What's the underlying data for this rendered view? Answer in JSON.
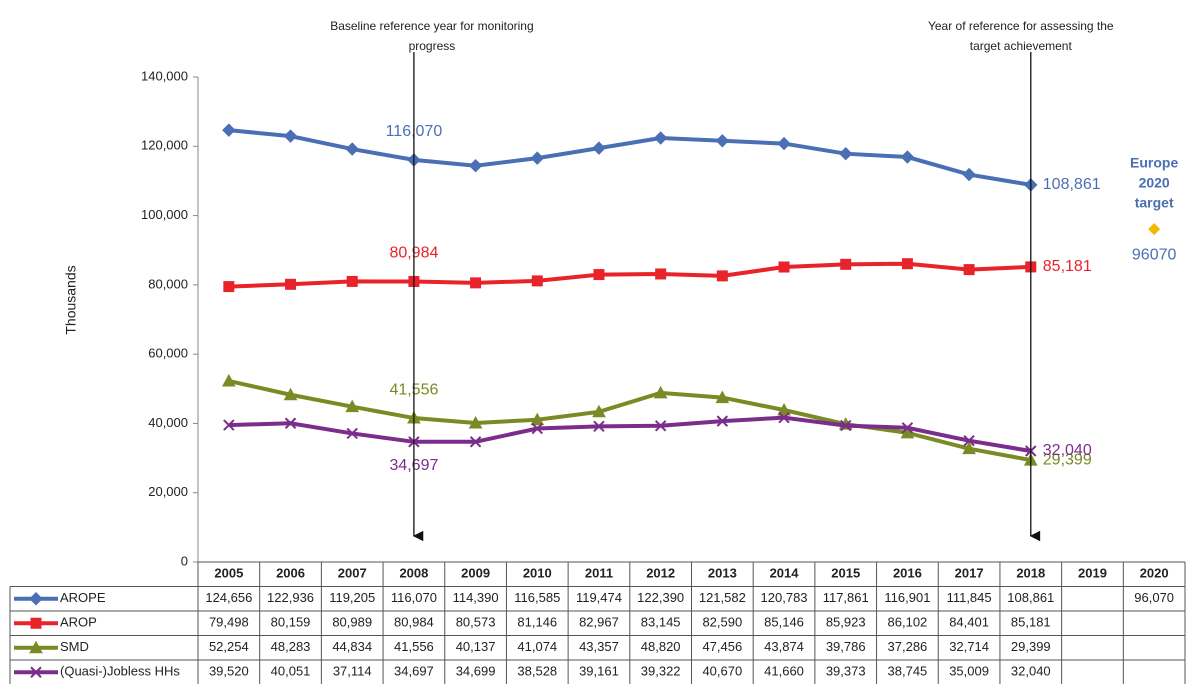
{
  "chart_data": {
    "type": "line",
    "y_label": "Thousands",
    "categories": [
      "2005",
      "2006",
      "2007",
      "2008",
      "2009",
      "2010",
      "2011",
      "2012",
      "2013",
      "2014",
      "2015",
      "2016",
      "2017",
      "2018",
      "2019",
      "2020"
    ],
    "ylim": [
      0,
      140000
    ],
    "yticks": [
      {
        "value": 0,
        "label": "0"
      },
      {
        "value": 20000,
        "label": "20,000"
      },
      {
        "value": 40000,
        "label": "40,000"
      },
      {
        "value": 60000,
        "label": "60,000"
      },
      {
        "value": 80000,
        "label": "80,000"
      },
      {
        "value": 100000,
        "label": "100,000"
      },
      {
        "value": 120000,
        "label": "120,000"
      },
      {
        "value": 140000,
        "label": "140,000"
      }
    ],
    "labeled_points": [
      3,
      13
    ],
    "series": [
      {
        "name": "AROPE",
        "color": "#4a6fb5",
        "marker": "diamond",
        "values": [
          124656,
          122936,
          119205,
          116070,
          114390,
          116585,
          119474,
          122390,
          121582,
          120783,
          117861,
          116901,
          111845,
          108861,
          null,
          null
        ],
        "value_labels": [
          "124,656",
          "122,936",
          "119,205",
          "116,070",
          "114,390",
          "116,585",
          "119,474",
          "122,390",
          "121,582",
          "120,783",
          "117,861",
          "116,901",
          "111,845",
          "108,861",
          null,
          null
        ]
      },
      {
        "name": "AROP",
        "color": "#e8232a",
        "marker": "square",
        "values": [
          79498,
          80159,
          80989,
          80984,
          80573,
          81146,
          82967,
          83145,
          82590,
          85146,
          85923,
          86102,
          84401,
          85181,
          null,
          null
        ],
        "value_labels": [
          "79,498",
          "80,159",
          "80,989",
          "80,984",
          "80,573",
          "81,146",
          "82,967",
          "83,145",
          "82,590",
          "85,146",
          "85,923",
          "86,102",
          "84,401",
          "85,181",
          null,
          null
        ]
      },
      {
        "name": "SMD",
        "color": "#7a8a24",
        "marker": "triangle",
        "values": [
          52254,
          48283,
          44834,
          41556,
          40137,
          41074,
          43357,
          48820,
          47456,
          43874,
          39786,
          37286,
          32714,
          29399,
          null,
          null
        ],
        "value_labels": [
          "52,254",
          "48,283",
          "44,834",
          "41,556",
          "40,137",
          "41,074",
          "43,357",
          "48,820",
          "47,456",
          "43,874",
          "39,786",
          "37,286",
          "32,714",
          "29,399",
          null,
          null
        ]
      },
      {
        "name": "(Quasi-)Jobless HHs",
        "color": "#7b2d8b",
        "marker": "x",
        "values": [
          39520,
          40051,
          37114,
          34697,
          34699,
          38528,
          39161,
          39322,
          40670,
          41660,
          39373,
          38745,
          35009,
          32040,
          null,
          null
        ],
        "value_labels": [
          "39,520",
          "40,051",
          "37,114",
          "34,697",
          "34,699",
          "38,528",
          "39,161",
          "39,322",
          "40,670",
          "41,660",
          "39,373",
          "38,745",
          "35,009",
          "32,040",
          null,
          null
        ]
      }
    ],
    "target": {
      "title_lines": [
        "Europe",
        "2020",
        "target"
      ],
      "category_index": 15,
      "value": 96070,
      "value_label": "96070",
      "table_label": "96,070",
      "color": "#f5b800"
    },
    "annotations": [
      {
        "lines": [
          "Baseline reference year for monitoring",
          "progress"
        ],
        "category_index": 3
      },
      {
        "lines": [
          "Year of reference for assessing the",
          "target achievement"
        ],
        "category_index": 13
      }
    ]
  }
}
